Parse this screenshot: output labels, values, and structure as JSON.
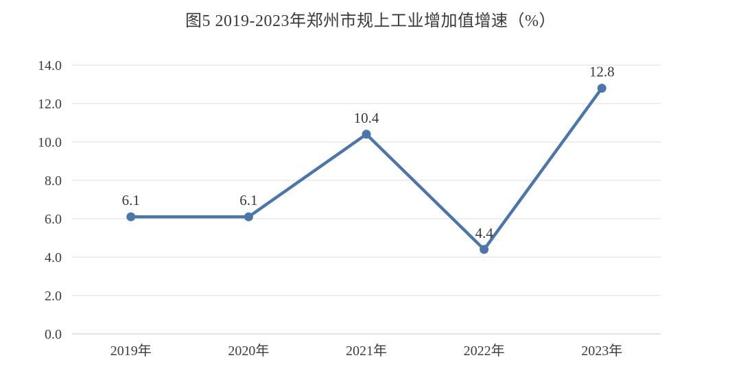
{
  "page": {
    "background": "#ffffff"
  },
  "chart_data": {
    "type": "line",
    "title": "图5  2019-2023年郑州市规上工业增加值增速（%）",
    "categories": [
      "2019年",
      "2020年",
      "2021年",
      "2022年",
      "2023年"
    ],
    "values": [
      6.1,
      6.1,
      10.4,
      4.4,
      12.8
    ],
    "point_labels": [
      "6.1",
      "6.1",
      "10.4",
      "4.4",
      "12.8"
    ],
    "xlabel": "",
    "ylabel": "",
    "ylim": [
      0,
      14
    ],
    "ytick_step": 2,
    "ytick_decimals": 1,
    "ytick_labels": [
      "0.0",
      "2.0",
      "4.0",
      "6.0",
      "8.0",
      "10.0",
      "12.0",
      "14.0"
    ],
    "grid": "horizontal",
    "legend": "none",
    "line_color": "#4a76ab",
    "marker_color": "#4a76ab",
    "gridline_color": "#e4e4e4",
    "axisline_color": "#d4d4d4",
    "text_color": "#3d3d3d",
    "label_color": "#383838"
  }
}
